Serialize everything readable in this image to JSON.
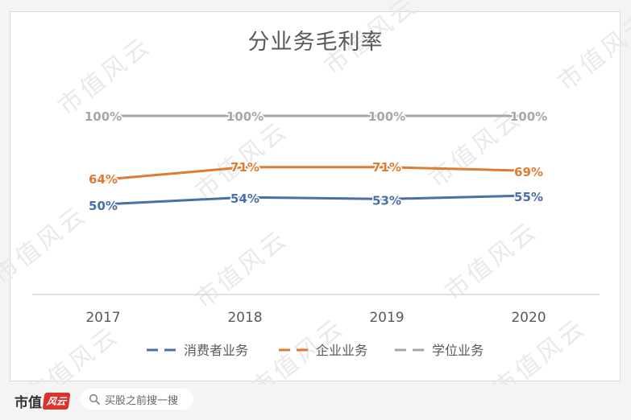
{
  "chart_data": {
    "type": "line",
    "title": "分业务毛利率",
    "categories": [
      "2017",
      "2018",
      "2019",
      "2020"
    ],
    "series": [
      {
        "name": "消费者业务",
        "values": [
          50,
          54,
          53,
          55
        ],
        "labels": [
          "50%",
          "54%",
          "53%",
          "55%"
        ],
        "color": "#4a6ea8"
      },
      {
        "name": "企业业务",
        "values": [
          64,
          71,
          71,
          69
        ],
        "labels": [
          "64%",
          "71%",
          "71%",
          "69%"
        ],
        "color": "#e07b32"
      },
      {
        "name": "学位业务",
        "values": [
          100,
          100,
          100,
          100
        ],
        "labels": [
          "100%",
          "100%",
          "100%",
          "100%"
        ],
        "color": "#a6a6a6"
      }
    ],
    "ylim": [
      0,
      100
    ],
    "grid": false,
    "legend_position": "bottom"
  },
  "watermark_text": "市值风云",
  "footer": {
    "brand_name": "市值",
    "brand_mark": "风云",
    "search_placeholder": "买股之前搜一搜"
  }
}
